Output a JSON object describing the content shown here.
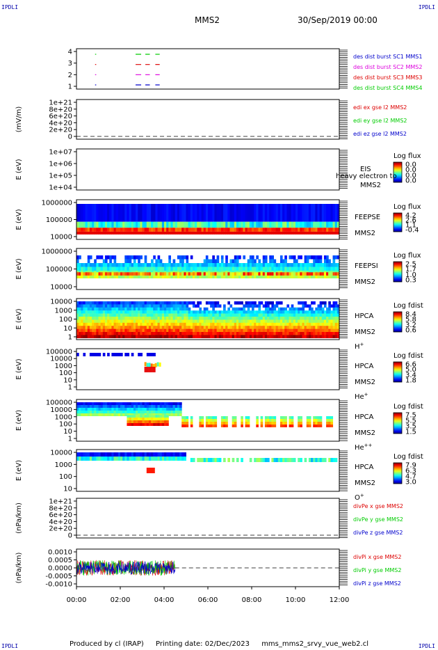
{
  "corners": {
    "tl": "IPDLI",
    "tr": "IPDLI",
    "bl": "IPDLI",
    "br": "IPDLI"
  },
  "header": {
    "spacecraft": "MMS2",
    "date": "30/Sep/2019 00:00"
  },
  "colors": {
    "red": "#dd0000",
    "green": "#00cc00",
    "blue": "#0000cc",
    "magenta": "#dd00dd"
  },
  "chart_data": {
    "type": "multi-panel spectrogram",
    "time_axis": {
      "ticks": [
        "00:00",
        "02:00",
        "04:00",
        "06:00",
        "08:00",
        "10:00",
        "12:00"
      ],
      "range_hours": [
        0,
        12
      ]
    },
    "panels": [
      {
        "id": "burst",
        "ylabel": "",
        "yticks": [
          "4",
          "3",
          "2",
          "1"
        ],
        "legend": [
          {
            "text": "des dist burst SC1 MMS1",
            "color": "#0000cc"
          },
          {
            "text": "des dist burst SC2 MMS2",
            "color": "#dd00dd"
          },
          {
            "text": "des dist burst SC3 MMS3",
            "color": "#dd0000"
          },
          {
            "text": "des dist burst SC4 MMS4",
            "color": "#00cc00"
          }
        ]
      },
      {
        "id": "edi",
        "ylabel": "(mV/m)",
        "yticks": [
          "1e+21",
          "8e+20",
          "6e+20",
          "4e+20",
          "2e+20",
          "0"
        ],
        "legend": [
          {
            "text": "edi ex gse l2 MMS2",
            "color": "#dd0000"
          },
          {
            "text": "edi ey gse l2 MMS2",
            "color": "#00cc00"
          },
          {
            "text": "edi ez gse l2 MMS2",
            "color": "#0000cc"
          }
        ]
      },
      {
        "id": "eis",
        "ylabel": "E (eV)",
        "yticks": [
          "1e+07",
          "1e+06",
          "1e+05",
          "1e+04"
        ],
        "labels": [
          "EIS",
          "MMS2"
        ],
        "overlay": "heavy electron to",
        "cbar_title": "Log flux",
        "cbar_ticks": [
          "0.0",
          "0.0",
          "0.0",
          "0.0"
        ]
      },
      {
        "id": "feepse",
        "ylabel": "E (eV)",
        "yticks": [
          "1000000",
          "100000",
          "10000"
        ],
        "labels": [
          "FEEPSE",
          "MMS2"
        ],
        "cbar_title": "Log flux",
        "cbar_ticks": [
          "4.2",
          "2.6",
          "1.1",
          "-0.4"
        ]
      },
      {
        "id": "feepsi",
        "ylabel": "E (eV)",
        "yticks": [
          "1000000",
          "100000",
          "10000"
        ],
        "labels": [
          "FEEPSI",
          "MMS2"
        ],
        "cbar_title": "Log flux",
        "cbar_ticks": [
          "2.5",
          "1.7",
          "1.0",
          "0.3"
        ]
      },
      {
        "id": "hpca_h",
        "ylabel": "E (eV)",
        "yticks": [
          "10000",
          "1000",
          "100",
          "10",
          "1"
        ],
        "labels": [
          "HPCA",
          "MMS2",
          "H+"
        ],
        "cbar_title": "Log fdist",
        "cbar_ticks": [
          "8.4",
          "5.8",
          "3.2",
          "0.6"
        ]
      },
      {
        "id": "hpca_he",
        "ylabel": "E (eV)",
        "yticks": [
          "100000",
          "10000",
          "1000",
          "100",
          "10",
          "1"
        ],
        "labels": [
          "HPCA",
          "MMS2",
          "He+"
        ],
        "cbar_title": "Log fdist",
        "cbar_ticks": [
          "6.6",
          "5.0",
          "3.4",
          "1.8"
        ]
      },
      {
        "id": "hpca_hepp",
        "ylabel": "E (eV)",
        "yticks": [
          "100000",
          "10000",
          "1000",
          "100",
          "10",
          "1"
        ],
        "labels": [
          "HPCA",
          "MMS2",
          "He++"
        ],
        "cbar_title": "Log fdist",
        "cbar_ticks": [
          "7.5",
          "5.5",
          "3.5",
          "1.5"
        ]
      },
      {
        "id": "hpca_o",
        "ylabel": "E (eV)",
        "yticks": [
          "10000",
          "1000",
          "100",
          "10"
        ],
        "labels": [
          "HPCA",
          "MMS2",
          "O+"
        ],
        "cbar_title": "Log fdist",
        "cbar_ticks": [
          "7.9",
          "6.3",
          "4.7",
          "3.0"
        ]
      },
      {
        "id": "divpe",
        "ylabel": "(nPa/km)",
        "yticks": [
          "1e+21",
          "8e+20",
          "6e+20",
          "4e+20",
          "2e+20",
          "0"
        ],
        "legend": [
          {
            "text": "divPe x gse MMS2",
            "color": "#dd0000"
          },
          {
            "text": "divPe y gse MMS2",
            "color": "#00cc00"
          },
          {
            "text": "divPe z gse MMS2",
            "color": "#0000cc"
          }
        ]
      },
      {
        "id": "divpi",
        "ylabel": "(nPa/km)",
        "yticks": [
          "0.0010",
          "0.0005",
          "0.0000",
          "-0.0005",
          "-0.0010"
        ],
        "legend": [
          {
            "text": "divPi x gse MMS2",
            "color": "#dd0000"
          },
          {
            "text": "divPi y gse MMS2",
            "color": "#00cc00"
          },
          {
            "text": "divPi z gse MMS2",
            "color": "#0000cc"
          }
        ]
      }
    ]
  },
  "footer": {
    "produced": "Produced by cl (IRAP)",
    "printing": "Printing date: 02/Dec/2023",
    "file": "mms_mms2_srvy_vue_web2.cl"
  }
}
